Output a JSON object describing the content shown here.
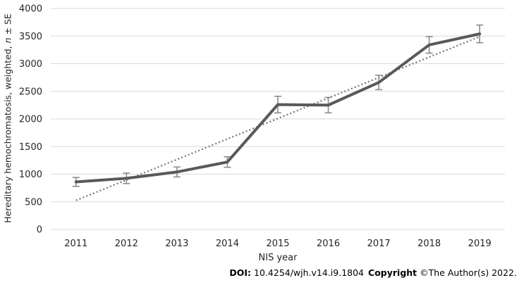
{
  "chart_data": {
    "type": "line",
    "xlabel": "NIS year",
    "ylabel": {
      "prefix": "Hereditary hemochromatosis, weighted, ",
      "italic_symbol": "n",
      "suffix": " ± SE",
      "full": "Hereditary hemochromatosis, weighted, n ± SE"
    },
    "categories": [
      "2011",
      "2012",
      "2013",
      "2014",
      "2015",
      "2016",
      "2017",
      "2018",
      "2019"
    ],
    "series": [
      {
        "name": "hereditary-hemochromatosis-weighted-count",
        "style": "solid-line-with-error-bars",
        "values": [
          860,
          925,
          1040,
          1220,
          2260,
          2250,
          2660,
          3340,
          3540
        ],
        "se": [
          80,
          95,
          90,
          95,
          150,
          140,
          130,
          150,
          160
        ],
        "color": "#595959"
      },
      {
        "name": "linear-trendline",
        "style": "dotted-trend",
        "x_indices": [
          0,
          8
        ],
        "values": [
          525,
          3490
        ],
        "color": "#757575"
      }
    ],
    "ylim": [
      0,
      4000
    ],
    "ytick_step": 500,
    "grid": true,
    "legend": "none"
  },
  "footer": {
    "doi_label": "DOI:",
    "doi_value": "10.4254/wjh.v14.i9.1804",
    "copyright_label": "Copyright",
    "copyright_value": "©The Author(s) 2022."
  },
  "colors": {
    "line": "#595959",
    "error_bar": "#8c8c8c",
    "trend": "#757575",
    "gridline": "#d9d9d9",
    "text": "#262626",
    "background": "#ffffff"
  }
}
